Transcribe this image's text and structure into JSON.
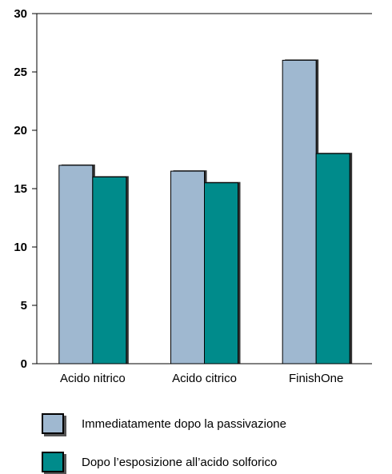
{
  "chart_data": {
    "type": "bar",
    "categories": [
      "Acido nitrico",
      "Acido citrico",
      "FinishOne"
    ],
    "series": [
      {
        "name": "Immediatamente dopo la passivazione",
        "values": [
          17,
          16.5,
          26
        ],
        "color": "#9fb8d0"
      },
      {
        "name": "Dopo l’esposizione all’acido solforico",
        "values": [
          16,
          15.5,
          18
        ],
        "color": "#008b8b"
      }
    ],
    "ylim": [
      0,
      30
    ],
    "yticks": [
      "0",
      "5",
      "10",
      "15",
      "20",
      "25",
      "30"
    ],
    "grid": false,
    "legend_position": "bottom"
  }
}
